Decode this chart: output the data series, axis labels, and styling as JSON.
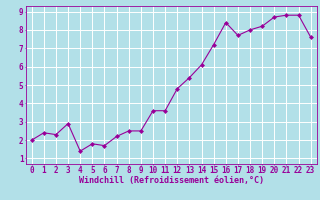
{
  "x": [
    0,
    1,
    2,
    3,
    4,
    5,
    6,
    7,
    8,
    9,
    10,
    11,
    12,
    13,
    14,
    15,
    16,
    17,
    18,
    19,
    20,
    21,
    22,
    23
  ],
  "y": [
    2.0,
    2.4,
    2.3,
    2.9,
    1.4,
    1.8,
    1.7,
    2.2,
    2.5,
    2.5,
    3.6,
    3.6,
    4.8,
    5.4,
    6.1,
    7.2,
    8.4,
    7.7,
    8.0,
    8.2,
    8.7,
    8.8,
    8.8,
    7.6
  ],
  "line_color": "#990099",
  "marker": "D",
  "marker_size": 2.0,
  "bg_color": "#b2e0e8",
  "grid_color": "#ffffff",
  "xlabel": "Windchill (Refroidissement éolien,°C)",
  "xlim": [
    0,
    23
  ],
  "ylim": [
    1,
    9
  ],
  "yticks": [
    1,
    2,
    3,
    4,
    5,
    6,
    7,
    8,
    9
  ],
  "xticks": [
    0,
    1,
    2,
    3,
    4,
    5,
    6,
    7,
    8,
    9,
    10,
    11,
    12,
    13,
    14,
    15,
    16,
    17,
    18,
    19,
    20,
    21,
    22,
    23
  ],
  "tick_color": "#990099",
  "label_color": "#990099",
  "spine_color": "#990099",
  "font_size": 5.5,
  "xlabel_fontsize": 6.0
}
